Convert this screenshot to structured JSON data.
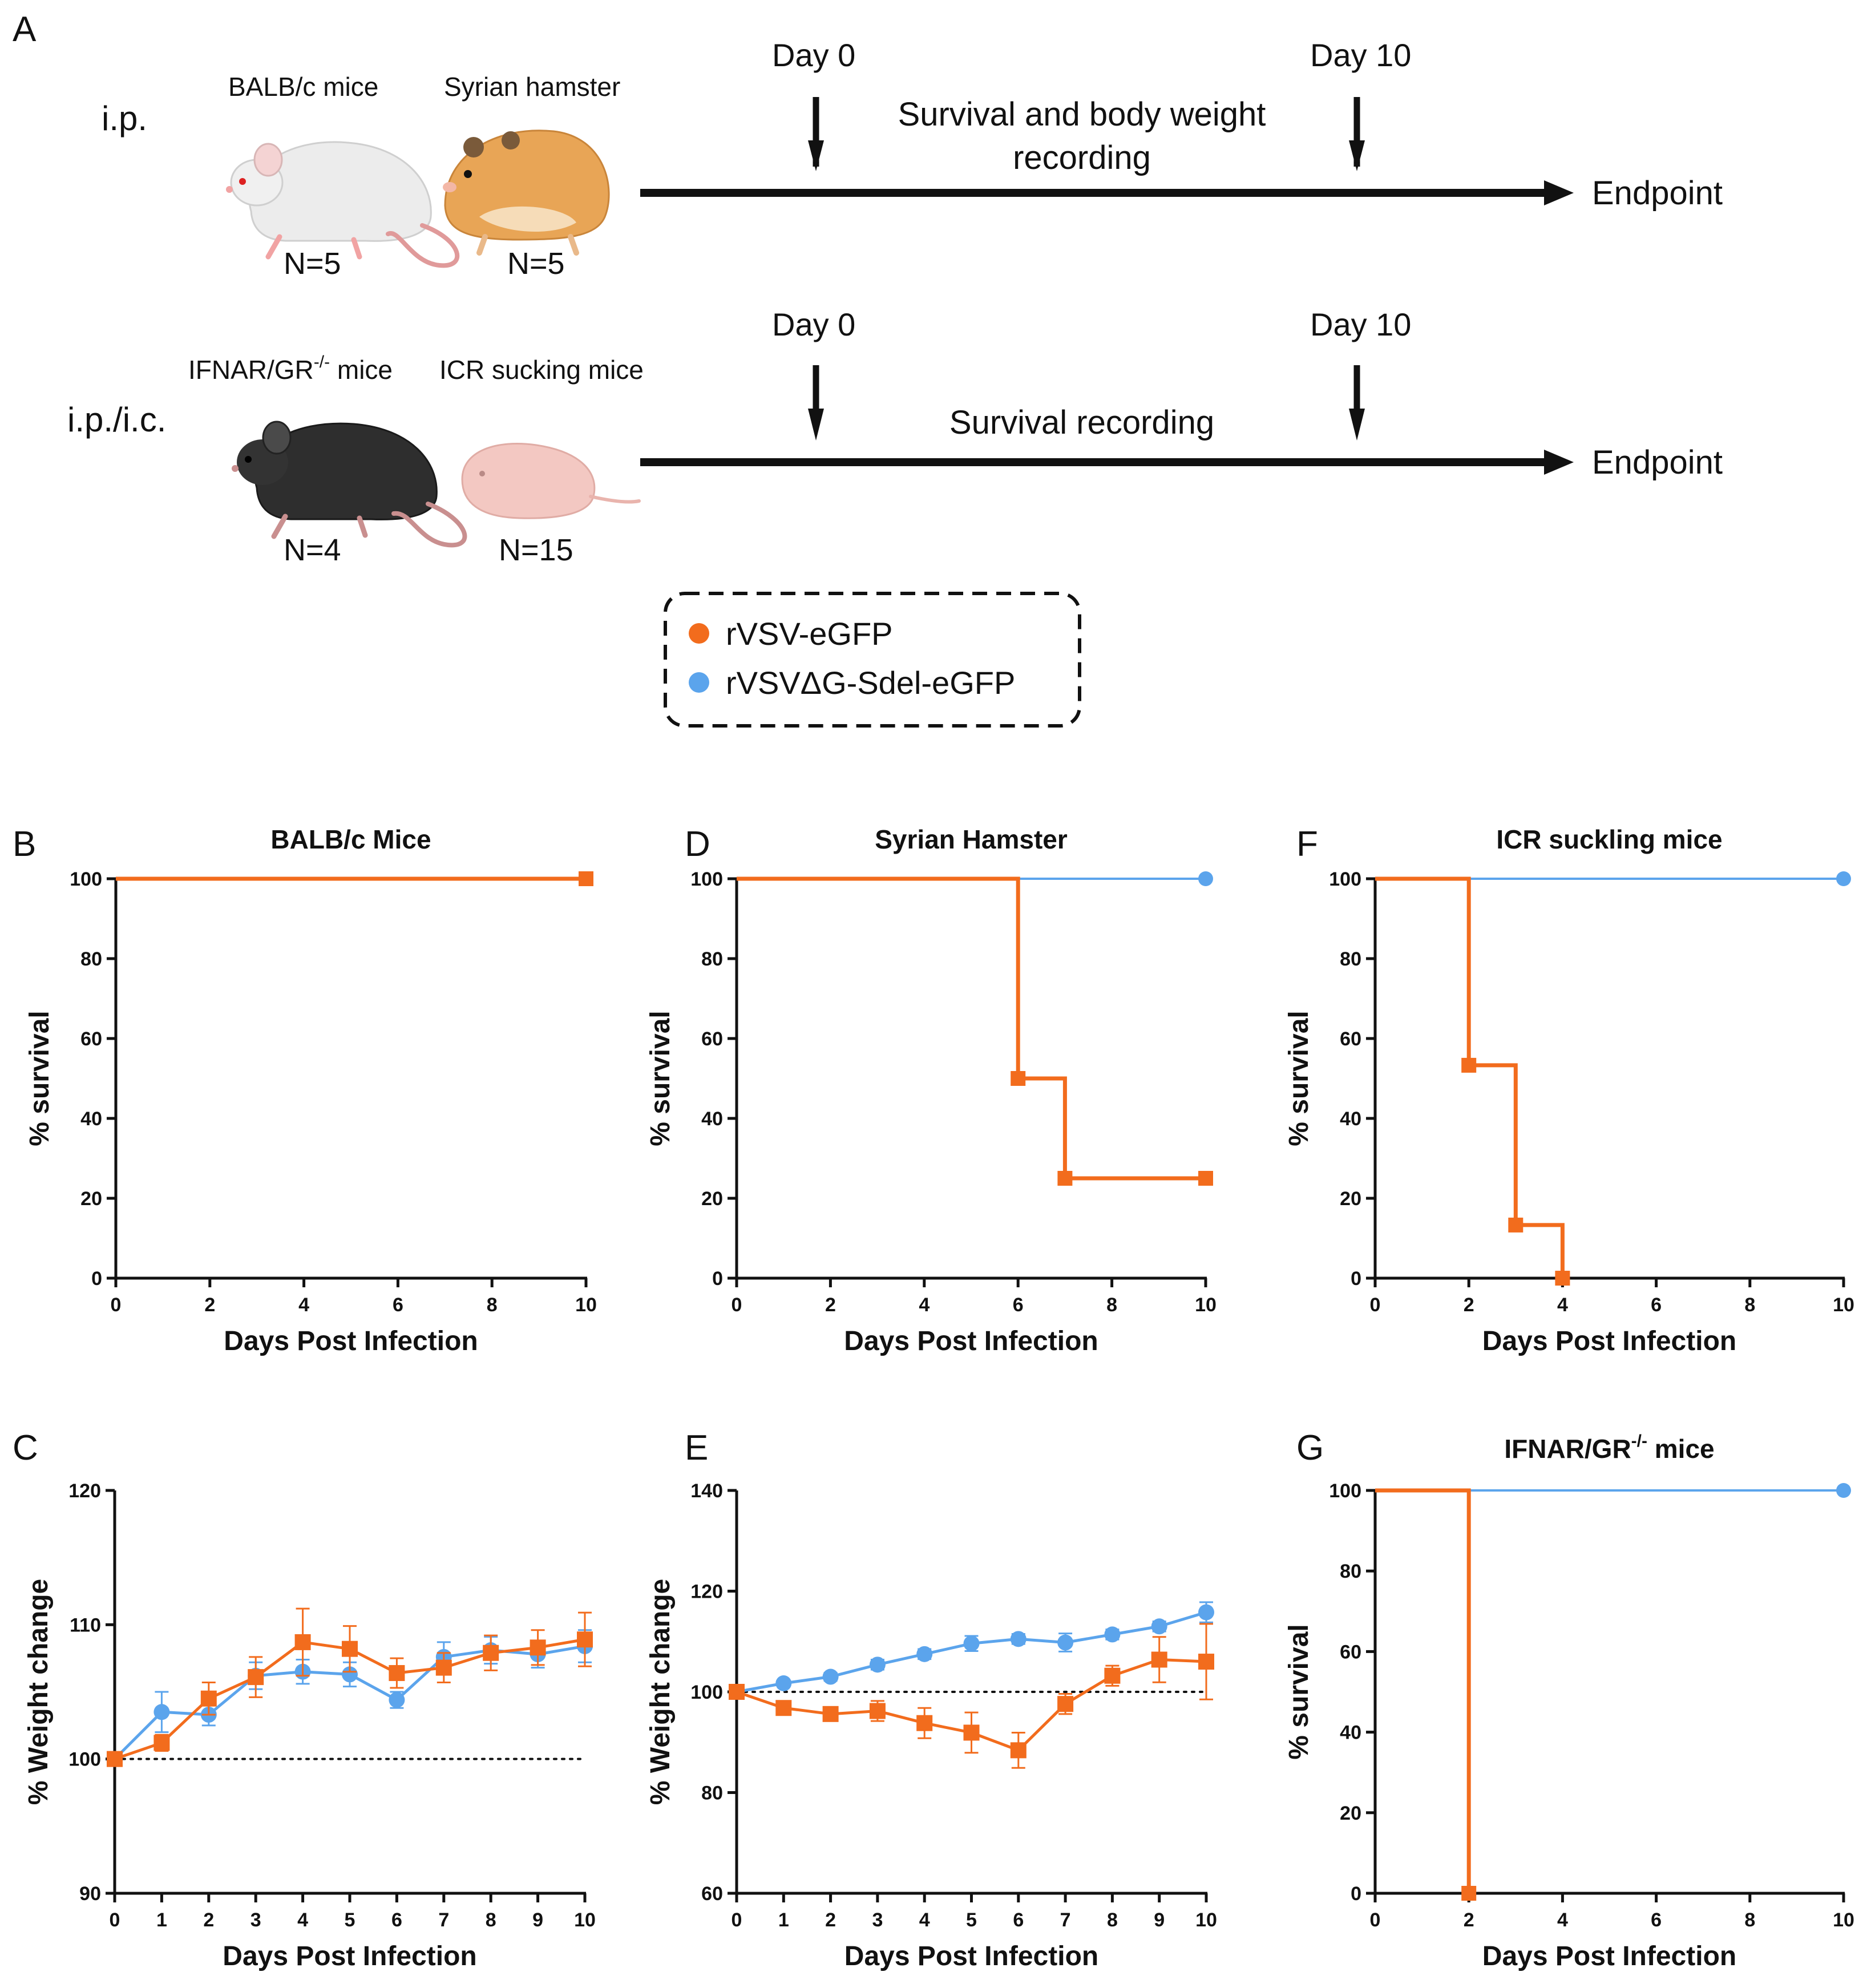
{
  "colors": {
    "orange": "#f26c1d",
    "blue": "#5ba4ec",
    "axis": "#000000"
  },
  "schematic": {
    "panel_label": "A",
    "row1": {
      "route": "i.p.",
      "animal1": {
        "name": "BALB/c mice",
        "n": "N=5",
        "icon": "white-mouse-icon"
      },
      "animal2": {
        "name": "Syrian hamster",
        "n": "N=5",
        "icon": "hamster-icon"
      },
      "day_start": "Day 0",
      "day_end": "Day 10",
      "caption_line1": "Survival and body weight",
      "caption_line2": "recording",
      "endpoint": "Endpoint"
    },
    "row2": {
      "route": "i.p./i.c.",
      "animal1": {
        "name_main": "IFNAR/GR",
        "name_sup": "-/-",
        "name_tail": " mice",
        "n": "N=4",
        "icon": "black-mouse-icon"
      },
      "animal2": {
        "name": "ICR sucking mice",
        "n": "N=15",
        "icon": "pup-icon"
      },
      "day_start": "Day 0",
      "day_end": "Day 10",
      "caption": "Survival recording",
      "endpoint": "Endpoint"
    },
    "legend": [
      {
        "label": "rVSV-eGFP",
        "color": "#f26c1d"
      },
      {
        "label": "rVSVΔG-Sdel-eGFP",
        "color": "#5ba4ec"
      }
    ]
  },
  "chart_data": [
    {
      "panel": "B",
      "type": "line",
      "title": "BALB/c Mice",
      "xlabel": "Days Post Infection",
      "ylabel": "% survival",
      "xlim": [
        0,
        10
      ],
      "ylim": [
        0,
        100
      ],
      "xticks": [
        0,
        2,
        4,
        6,
        8,
        10
      ],
      "yticks": [
        0,
        20,
        40,
        60,
        80,
        100
      ],
      "series": [
        {
          "name": "rVSVΔG-Sdel-eGFP",
          "color": "#5ba4ec",
          "style": "step",
          "x": [
            0,
            10
          ],
          "y": [
            100,
            100
          ],
          "markers": [
            [
              10,
              100
            ]
          ],
          "marker": "circle"
        },
        {
          "name": "rVSV-eGFP",
          "color": "#f26c1d",
          "style": "step",
          "x": [
            0,
            10
          ],
          "y": [
            100,
            100
          ],
          "markers": [
            [
              10,
              100
            ]
          ],
          "marker": "square"
        }
      ]
    },
    {
      "panel": "C",
      "type": "line",
      "title": "",
      "xlabel": "Days Post Infection",
      "ylabel": "% Weight change",
      "xlim": [
        0,
        10
      ],
      "ylim": [
        90,
        120
      ],
      "xticks": [
        0,
        1,
        2,
        3,
        4,
        5,
        6,
        7,
        8,
        9,
        10
      ],
      "yticks": [
        90,
        100,
        110,
        120
      ],
      "baseline": 100,
      "series": [
        {
          "name": "rVSVΔG-Sdel-eGFP",
          "color": "#5ba4ec",
          "style": "line",
          "marker": "circle",
          "x": [
            0,
            1,
            2,
            3,
            4,
            5,
            6,
            7,
            8,
            9,
            10
          ],
          "y": [
            100,
            103.5,
            103.3,
            106.2,
            106.5,
            106.3,
            104.4,
            107.6,
            108.1,
            107.8,
            108.4
          ],
          "err": [
            0,
            1.5,
            0.8,
            1.0,
            0.9,
            0.9,
            0.6,
            1.1,
            1.0,
            1.0,
            1.2
          ]
        },
        {
          "name": "rVSV-eGFP",
          "color": "#f26c1d",
          "style": "line",
          "marker": "square",
          "x": [
            0,
            1,
            2,
            3,
            4,
            5,
            6,
            7,
            8,
            9,
            10
          ],
          "y": [
            100,
            101.2,
            104.5,
            106.1,
            108.7,
            108.2,
            106.4,
            106.8,
            107.9,
            108.3,
            108.9
          ],
          "err": [
            0,
            0.6,
            1.2,
            1.5,
            2.5,
            1.7,
            1.1,
            1.1,
            1.3,
            1.3,
            2.0
          ]
        }
      ]
    },
    {
      "panel": "D",
      "type": "line",
      "title": "Syrian Hamster",
      "xlabel": "Days Post Infection",
      "ylabel": "% survival",
      "xlim": [
        0,
        10
      ],
      "ylim": [
        0,
        100
      ],
      "xticks": [
        0,
        2,
        4,
        6,
        8,
        10
      ],
      "yticks": [
        0,
        20,
        40,
        60,
        80,
        100
      ],
      "series": [
        {
          "name": "rVSVΔG-Sdel-eGFP",
          "color": "#5ba4ec",
          "style": "step",
          "x": [
            0,
            10
          ],
          "y": [
            100,
            100
          ],
          "markers": [
            [
              10,
              100
            ]
          ],
          "marker": "circle"
        },
        {
          "name": "rVSV-eGFP",
          "color": "#f26c1d",
          "style": "step",
          "x": [
            0,
            6,
            7,
            10
          ],
          "y": [
            100,
            50,
            25,
            25
          ],
          "markers": [
            [
              6,
              50
            ],
            [
              7,
              25
            ],
            [
              10,
              25
            ]
          ],
          "marker": "square"
        }
      ]
    },
    {
      "panel": "E",
      "type": "line",
      "title": "",
      "xlabel": "Days Post Infection",
      "ylabel": "% Weight change",
      "xlim": [
        0,
        10
      ],
      "ylim": [
        60,
        140
      ],
      "xticks": [
        0,
        1,
        2,
        3,
        4,
        5,
        6,
        7,
        8,
        9,
        10
      ],
      "yticks": [
        60,
        80,
        100,
        120,
        140
      ],
      "baseline": 100,
      "series": [
        {
          "name": "rVSVΔG-Sdel-eGFP",
          "color": "#5ba4ec",
          "style": "line",
          "marker": "circle",
          "x": [
            0,
            1,
            2,
            3,
            4,
            5,
            6,
            7,
            8,
            9,
            10
          ],
          "y": [
            100,
            101.7,
            103.0,
            105.4,
            107.5,
            109.6,
            110.5,
            109.8,
            111.4,
            113.0,
            115.8
          ],
          "err": [
            0,
            0.5,
            0.8,
            1.0,
            1.0,
            1.5,
            1.0,
            1.8,
            1.0,
            1.0,
            2.0
          ]
        },
        {
          "name": "rVSV-eGFP",
          "color": "#f26c1d",
          "style": "line",
          "marker": "square",
          "x": [
            0,
            1,
            2,
            3,
            4,
            5,
            6,
            7,
            8,
            9,
            10
          ],
          "y": [
            100,
            96.8,
            95.6,
            96.2,
            93.8,
            91.9,
            88.4,
            97.6,
            103.2,
            106.4,
            106.0
          ],
          "err": [
            0,
            1.0,
            1.0,
            2.0,
            3.0,
            4.0,
            3.5,
            2.0,
            2.0,
            4.5,
            7.5
          ]
        }
      ]
    },
    {
      "panel": "F",
      "type": "line",
      "title": "ICR suckling mice",
      "xlabel": "Days Post Infection",
      "ylabel": "% survival",
      "xlim": [
        0,
        10
      ],
      "ylim": [
        0,
        100
      ],
      "xticks": [
        0,
        2,
        4,
        6,
        8,
        10
      ],
      "yticks": [
        0,
        20,
        40,
        60,
        80,
        100
      ],
      "series": [
        {
          "name": "rVSVΔG-Sdel-eGFP",
          "color": "#5ba4ec",
          "style": "step",
          "x": [
            0,
            10
          ],
          "y": [
            100,
            100
          ],
          "markers": [
            [
              10,
              100
            ]
          ],
          "marker": "circle"
        },
        {
          "name": "rVSV-eGFP",
          "color": "#f26c1d",
          "style": "step",
          "x": [
            0,
            2,
            3,
            4
          ],
          "y": [
            100,
            53.3,
            13.3,
            0
          ],
          "markers": [
            [
              2,
              53.3
            ],
            [
              3,
              13.3
            ],
            [
              4,
              0
            ]
          ],
          "marker": "square"
        }
      ]
    },
    {
      "panel": "G",
      "type": "line",
      "title": "IFNAR/GR",
      "title_sup": "-/-",
      "title_tail": " mice",
      "xlabel": "Days Post Infection",
      "ylabel": "% survival",
      "xlim": [
        0,
        10
      ],
      "ylim": [
        0,
        100
      ],
      "xticks": [
        0,
        2,
        4,
        6,
        8,
        10
      ],
      "yticks": [
        0,
        20,
        40,
        60,
        80,
        100
      ],
      "series": [
        {
          "name": "rVSVΔG-Sdel-eGFP",
          "color": "#5ba4ec",
          "style": "step",
          "x": [
            0,
            10
          ],
          "y": [
            100,
            100
          ],
          "markers": [
            [
              10,
              100
            ]
          ],
          "marker": "circle"
        },
        {
          "name": "rVSV-eGFP",
          "color": "#f26c1d",
          "style": "step",
          "x": [
            0,
            2
          ],
          "y": [
            100,
            0
          ],
          "markers": [
            [
              2,
              0
            ]
          ],
          "marker": "square"
        }
      ]
    }
  ]
}
